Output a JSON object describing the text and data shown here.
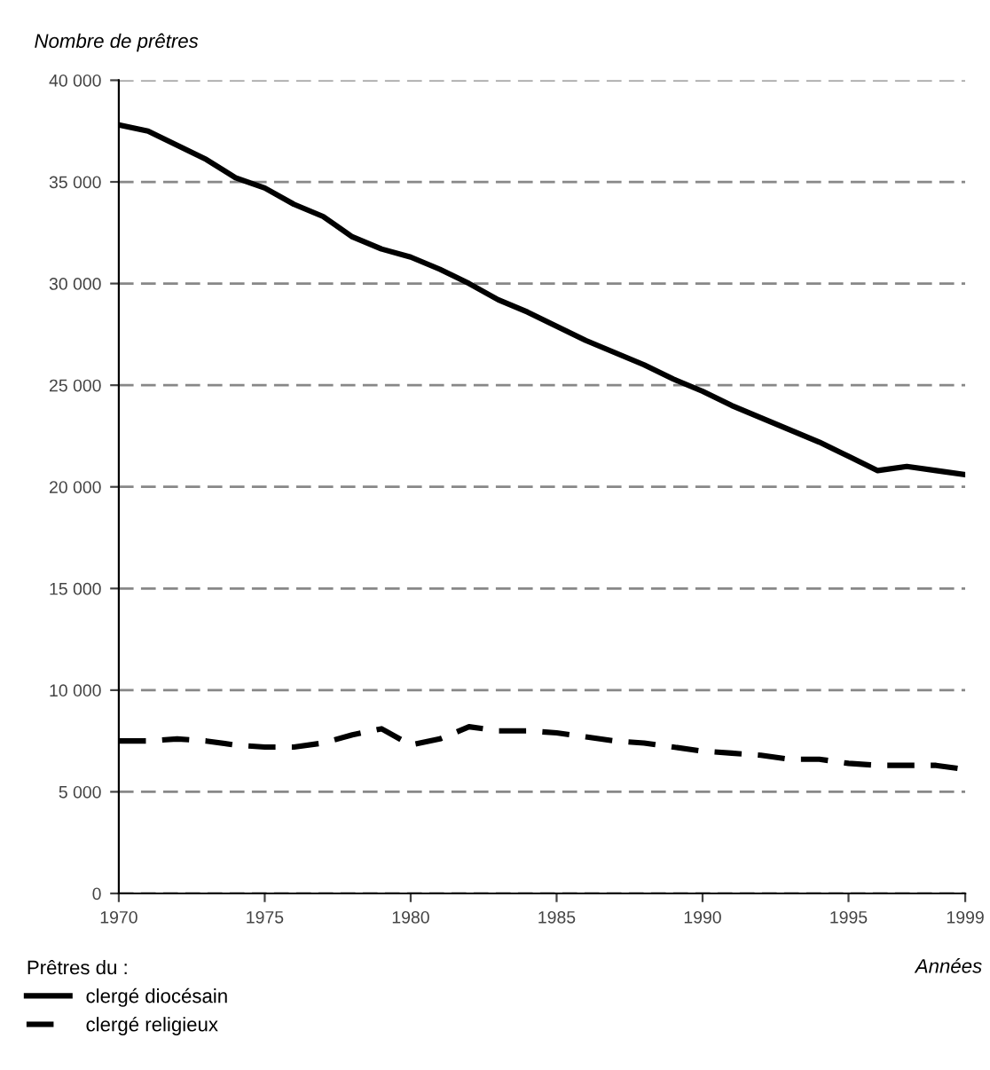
{
  "chart_data": {
    "type": "line",
    "ylabel": "Nombre de prêtres",
    "xlabel": "Années",
    "legend_title": "Prêtres du :",
    "x": [
      1970,
      1971,
      1972,
      1973,
      1974,
      1975,
      1976,
      1977,
      1978,
      1979,
      1980,
      1981,
      1982,
      1983,
      1984,
      1985,
      1986,
      1987,
      1988,
      1989,
      1990,
      1991,
      1992,
      1993,
      1994,
      1995,
      1996,
      1997,
      1998,
      1999
    ],
    "series": [
      {
        "name": "clergé diocésain",
        "color": "#000000",
        "line_style": "solid",
        "values": [
          37800,
          37500,
          36800,
          36100,
          35200,
          34700,
          33900,
          33300,
          32300,
          31700,
          31300,
          30700,
          30000,
          29200,
          28600,
          27900,
          27200,
          26600,
          26000,
          25300,
          24700,
          24000,
          23400,
          22800,
          22200,
          21500,
          20800,
          21000,
          20800,
          20600
        ]
      },
      {
        "name": "clergé religieux",
        "color": "#000000",
        "line_style": "dashed",
        "values": [
          7500,
          7500,
          7600,
          7500,
          7300,
          7200,
          7200,
          7400,
          7800,
          8100,
          7300,
          7600,
          8200,
          8000,
          8000,
          7900,
          7700,
          7500,
          7400,
          7200,
          7000,
          6900,
          6800,
          6600,
          6600,
          6400,
          6300,
          6300,
          6300,
          6100
        ]
      }
    ],
    "xlim": [
      1970,
      1999
    ],
    "xticks": [
      1970,
      1975,
      1980,
      1985,
      1990,
      1995,
      1999
    ],
    "ylim": [
      0,
      40000
    ],
    "yticks": [
      {
        "value": 0,
        "label": "0"
      },
      {
        "value": 5000,
        "label": "5 000"
      },
      {
        "value": 10000,
        "label": "10 000"
      },
      {
        "value": 15000,
        "label": "15 000"
      },
      {
        "value": 20000,
        "label": "20 000"
      },
      {
        "value": 25000,
        "label": "25 000"
      },
      {
        "value": 30000,
        "label": "30 000"
      },
      {
        "value": 35000,
        "label": "35 000"
      },
      {
        "value": 40000,
        "label": "40 000"
      }
    ],
    "grid": "y",
    "legend": "bottom left",
    "marker": "none"
  }
}
